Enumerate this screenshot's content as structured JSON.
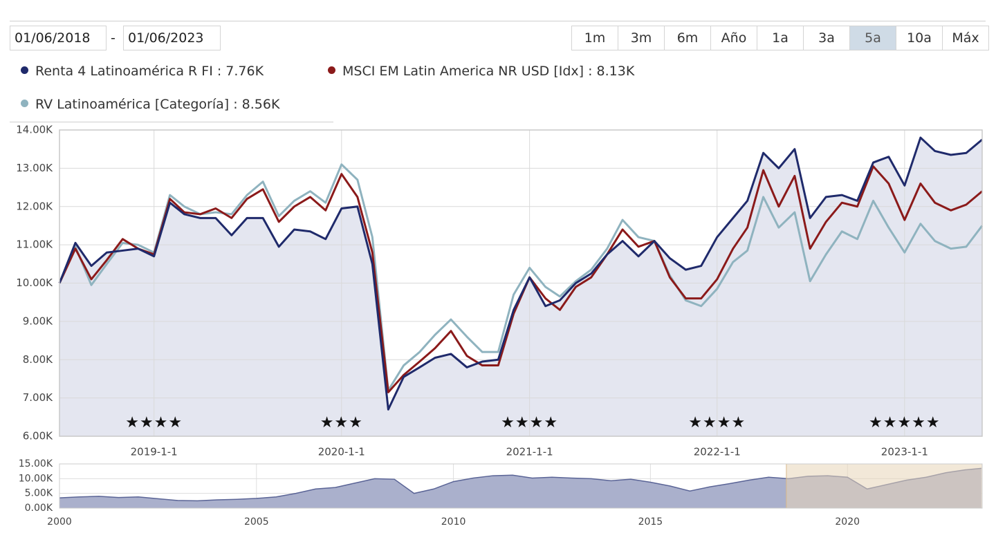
{
  "date_range": {
    "from": "01/06/2018",
    "separator": "-",
    "to": "01/06/2023"
  },
  "range_buttons": {
    "labels": [
      "1m",
      "3m",
      "6m",
      "Año",
      "1a",
      "3a",
      "5a",
      "10a",
      "Máx"
    ],
    "active": "5a"
  },
  "chart_data": [
    {
      "type": "line",
      "x": [
        "2018-07-01",
        "2018-08-01",
        "2018-09-01",
        "2018-10-01",
        "2018-11-01",
        "2018-12-01",
        "2019-01-01",
        "2019-02-01",
        "2019-03-01",
        "2019-04-01",
        "2019-05-01",
        "2019-06-01",
        "2019-07-01",
        "2019-08-01",
        "2019-09-01",
        "2019-10-01",
        "2019-11-01",
        "2019-12-01",
        "2020-01-01",
        "2020-02-01",
        "2020-03-01",
        "2020-04-01",
        "2020-05-01",
        "2020-06-01",
        "2020-07-01",
        "2020-08-01",
        "2020-09-01",
        "2020-10-01",
        "2020-11-01",
        "2020-12-01",
        "2021-01-01",
        "2021-02-01",
        "2021-03-01",
        "2021-04-01",
        "2021-05-01",
        "2021-06-01",
        "2021-07-01",
        "2021-08-01",
        "2021-09-01",
        "2021-10-01",
        "2021-11-01",
        "2021-12-01",
        "2022-01-01",
        "2022-02-01",
        "2022-03-01",
        "2022-04-01",
        "2022-05-01",
        "2022-06-01",
        "2022-07-01",
        "2022-08-01",
        "2022-09-01",
        "2022-10-01",
        "2022-11-01",
        "2022-12-01",
        "2023-01-01",
        "2023-02-01",
        "2023-03-01",
        "2023-04-01",
        "2023-05-01",
        "2023-06-01"
      ],
      "series": [
        {
          "name": "Renta 4 Latinoamérica R FI : 7.76K",
          "color": "#1f2a6b",
          "values": [
            10.0,
            11.05,
            10.45,
            10.8,
            10.85,
            10.9,
            10.7,
            12.1,
            11.8,
            11.7,
            11.7,
            11.25,
            11.7,
            11.7,
            10.95,
            11.4,
            11.35,
            11.15,
            11.95,
            12.0,
            10.5,
            6.7,
            7.55,
            7.8,
            8.05,
            8.15,
            7.8,
            7.95,
            8.0,
            9.3,
            10.15,
            9.4,
            9.55,
            10.0,
            10.25,
            10.75,
            11.1,
            10.7,
            11.1,
            10.65,
            10.35,
            10.45,
            11.2,
            11.7,
            12.15,
            13.4,
            13.0,
            13.5,
            11.7,
            12.25,
            12.3,
            12.15,
            13.15,
            13.3,
            12.55,
            13.8,
            13.45,
            13.35,
            13.4,
            13.75
          ]
        },
        {
          "name": "MSCI EM Latin America NR USD [Idx] : 8.13K",
          "color": "#8b1a1a",
          "values": [
            10.0,
            10.9,
            10.1,
            10.6,
            11.15,
            10.9,
            10.75,
            12.2,
            11.85,
            11.8,
            11.95,
            11.7,
            12.2,
            12.45,
            11.6,
            12.0,
            12.25,
            11.9,
            12.85,
            12.25,
            10.8,
            7.15,
            7.6,
            7.95,
            8.3,
            8.75,
            8.1,
            7.85,
            7.85,
            9.2,
            10.15,
            9.6,
            9.3,
            9.9,
            10.15,
            10.75,
            11.4,
            10.95,
            11.1,
            10.15,
            9.6,
            9.6,
            10.1,
            10.9,
            11.45,
            12.95,
            12.0,
            12.8,
            10.9,
            11.6,
            12.1,
            12.0,
            13.05,
            12.6,
            11.65,
            12.6,
            12.1,
            11.9,
            12.05,
            12.4
          ]
        },
        {
          "name": "RV Latinoamérica [Categoría] : 8.56K",
          "color": "#8fb3bf",
          "values": [
            10.0,
            10.95,
            9.95,
            10.5,
            11.05,
            11.0,
            10.8,
            12.3,
            12.0,
            11.8,
            11.85,
            11.8,
            12.3,
            12.65,
            11.75,
            12.15,
            12.4,
            12.1,
            13.1,
            12.7,
            11.2,
            7.2,
            7.85,
            8.2,
            8.65,
            9.05,
            8.6,
            8.2,
            8.2,
            9.7,
            10.4,
            9.9,
            9.65,
            10.05,
            10.35,
            10.9,
            11.65,
            11.2,
            11.1,
            10.2,
            9.55,
            9.4,
            9.85,
            10.55,
            10.85,
            12.25,
            11.45,
            11.85,
            10.05,
            10.75,
            11.35,
            11.15,
            12.15,
            11.45,
            10.8,
            11.55,
            11.1,
            10.9,
            10.95,
            11.5
          ]
        }
      ],
      "area_color": "#e4e6f0",
      "xlim": [
        "2018-07-01",
        "2023-06-01"
      ],
      "xticks": [
        {
          "value": "2019-01-01",
          "label": "2019-1-1"
        },
        {
          "value": "2020-01-01",
          "label": "2020-1-1"
        },
        {
          "value": "2021-01-01",
          "label": "2021-1-1"
        },
        {
          "value": "2022-01-01",
          "label": "2022-1-1"
        },
        {
          "value": "2023-01-01",
          "label": "2023-1-1"
        }
      ],
      "ylim": [
        6,
        14
      ],
      "yticks": [
        {
          "value": 6,
          "label": "6.00K"
        },
        {
          "value": 7,
          "label": "7.00K"
        },
        {
          "value": 8,
          "label": "8.00K"
        },
        {
          "value": 9,
          "label": "9.00K"
        },
        {
          "value": 10,
          "label": "10.00K"
        },
        {
          "value": 11,
          "label": "11.00K"
        },
        {
          "value": 12,
          "label": "12.00K"
        },
        {
          "value": 13,
          "label": "13.00K"
        },
        {
          "value": 14,
          "label": "14.00K"
        }
      ],
      "grid": true,
      "annotations": [
        {
          "x": "2019-01-01",
          "text": "★★★★"
        },
        {
          "x": "2020-01-01",
          "text": "★★★"
        },
        {
          "x": "2021-01-01",
          "text": "★★★★"
        },
        {
          "x": "2022-01-01",
          "text": "★★★★"
        },
        {
          "x": "2023-01-01",
          "text": "★★★★★"
        }
      ]
    },
    {
      "type": "area",
      "x": [
        2000,
        2000.5,
        2001,
        2001.5,
        2002,
        2002.5,
        2003,
        2003.5,
        2004,
        2004.5,
        2005,
        2005.5,
        2006,
        2006.5,
        2007,
        2007.5,
        2008,
        2008.5,
        2009,
        2009.5,
        2010,
        2010.5,
        2011,
        2011.5,
        2012,
        2012.5,
        2013,
        2013.5,
        2014,
        2014.5,
        2015,
        2015.5,
        2016,
        2016.5,
        2017,
        2017.5,
        2018,
        2018.5,
        2019,
        2019.5,
        2020,
        2020.5,
        2021,
        2021.5,
        2022,
        2022.5,
        2023,
        2023.4
      ],
      "values": [
        3.5,
        3.8,
        4.0,
        3.6,
        3.8,
        3.2,
        2.6,
        2.5,
        2.8,
        3.0,
        3.3,
        3.8,
        5.0,
        6.5,
        7.0,
        8.5,
        10.0,
        9.8,
        5.0,
        6.5,
        9.0,
        10.2,
        11.0,
        11.2,
        10.2,
        10.5,
        10.2,
        10.0,
        9.3,
        9.8,
        8.8,
        7.5,
        5.8,
        7.2,
        8.3,
        9.5,
        10.5,
        10.0,
        10.8,
        11.0,
        10.5,
        6.5,
        8.0,
        9.5,
        10.5,
        12.0,
        13.0,
        13.5
      ],
      "color": "#5a6496",
      "area_color": "#aab0cc",
      "xlim": [
        2000,
        2023.42
      ],
      "xticks": [
        2000,
        2005,
        2010,
        2015,
        2020
      ],
      "ylim": [
        0,
        15
      ],
      "yticks": [
        {
          "value": 0,
          "label": "0.00K"
        },
        {
          "value": 5,
          "label": "5.00K"
        },
        {
          "value": 10,
          "label": "10.00K"
        },
        {
          "value": 15,
          "label": "15.00K"
        }
      ],
      "grid": true,
      "selection": [
        2018.45,
        2023.42
      ],
      "selection_color": "#e8d6b8"
    }
  ]
}
